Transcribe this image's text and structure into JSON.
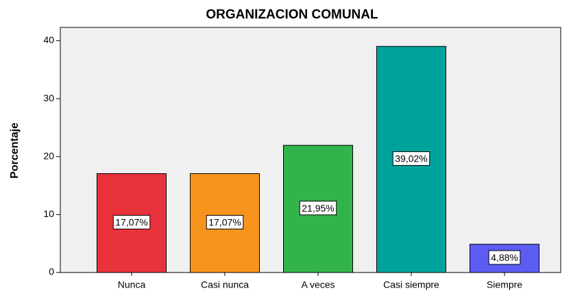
{
  "chart_data": {
    "type": "bar",
    "title": "ORGANIZACION COMUNAL",
    "y_label": "Porcentaje",
    "categories": [
      "Nunca",
      "Casi nunca",
      "A veces",
      "Casi siempre",
      "Siempre"
    ],
    "values": [
      17.07,
      17.07,
      21.95,
      39.02,
      4.88
    ],
    "value_labels": [
      "17,07%",
      "17,07%",
      "21,95%",
      "39,02%",
      "4,88%"
    ],
    "colors": [
      "#ea323c",
      "#f7941e",
      "#33b44a",
      "#00a39b",
      "#5c5cf2"
    ],
    "ylim": [
      0,
      42.3
    ],
    "yticks": [
      0,
      10,
      20,
      30,
      40
    ],
    "grid": false
  }
}
